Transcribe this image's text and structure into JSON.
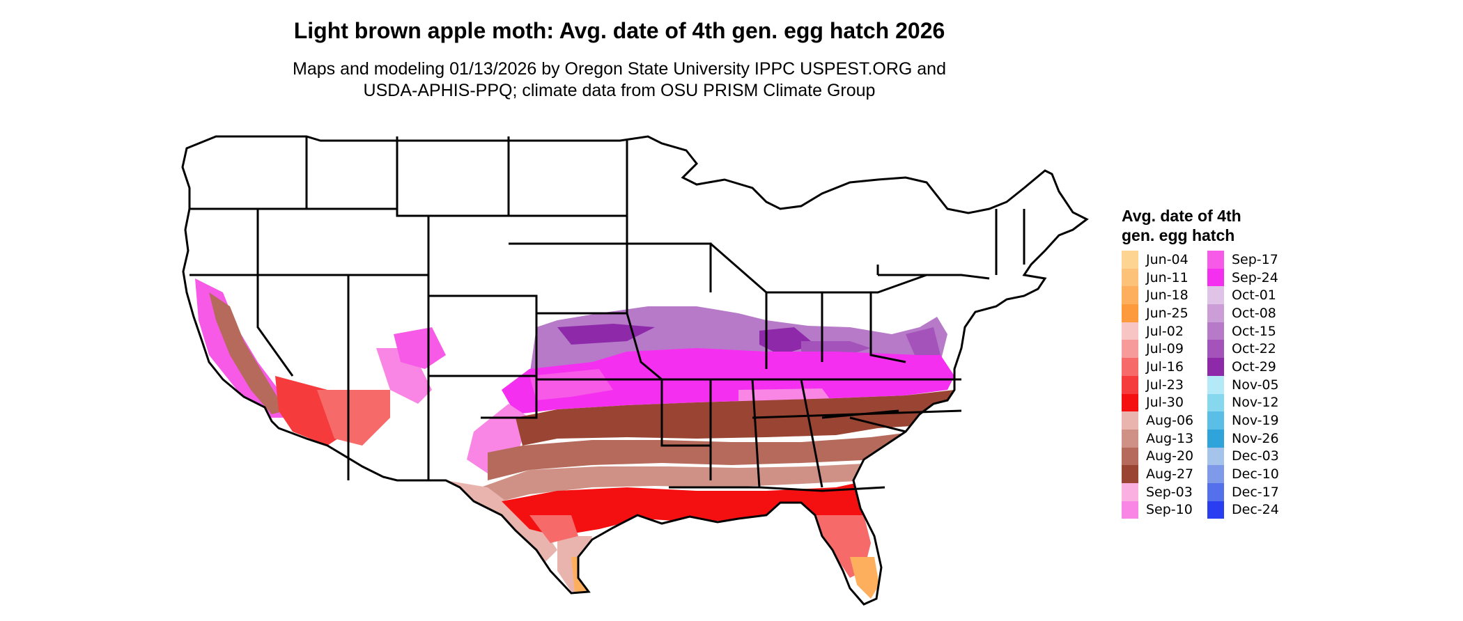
{
  "title": "Light brown apple moth: Avg. date of 4th gen. egg hatch 2026",
  "subtitle_line1": "Maps and modeling 01/13/2026 by Oregon State University IPPC USPEST.ORG and",
  "subtitle_line2": "USDA-APHIS-PPQ; climate data from OSU PRISM Climate Group",
  "legend": {
    "title": "Avg. date of 4th gen. egg hatch",
    "columns": [
      [
        {
          "label": "Jun-04",
          "color": "#fdd491"
        },
        {
          "label": "Jun-11",
          "color": "#fdc27a"
        },
        {
          "label": "Jun-18",
          "color": "#fdaf5e"
        },
        {
          "label": "Jun-25",
          "color": "#fd9a3e"
        },
        {
          "label": "Jul-02",
          "color": "#f8c5c5"
        },
        {
          "label": "Jul-09",
          "color": "#f79a9a"
        },
        {
          "label": "Jul-16",
          "color": "#f66a6a"
        },
        {
          "label": "Jul-23",
          "color": "#f53b3b"
        },
        {
          "label": "Jul-30",
          "color": "#f41010"
        },
        {
          "label": "Aug-06",
          "color": "#e8b4ad"
        },
        {
          "label": "Aug-13",
          "color": "#cf9185"
        },
        {
          "label": "Aug-20",
          "color": "#b56a5b"
        },
        {
          "label": "Aug-27",
          "color": "#9a4534"
        },
        {
          "label": "Sep-03",
          "color": "#fbb0e2"
        },
        {
          "label": "Sep-10",
          "color": "#f986e4"
        }
      ],
      [
        {
          "label": "Sep-17",
          "color": "#f65ae6"
        },
        {
          "label": "Sep-24",
          "color": "#f52ff0"
        },
        {
          "label": "Oct-01",
          "color": "#e0c4e8"
        },
        {
          "label": "Oct-08",
          "color": "#cc9ed8"
        },
        {
          "label": "Oct-15",
          "color": "#b77ac9"
        },
        {
          "label": "Oct-22",
          "color": "#a453ba"
        },
        {
          "label": "Oct-29",
          "color": "#8e2aa9"
        },
        {
          "label": "Nov-05",
          "color": "#b4eaf7"
        },
        {
          "label": "Nov-12",
          "color": "#87d7ef"
        },
        {
          "label": "Nov-19",
          "color": "#5bbee6"
        },
        {
          "label": "Nov-26",
          "color": "#2ea4da"
        },
        {
          "label": "Dec-03",
          "color": "#a6c3ec"
        },
        {
          "label": "Dec-10",
          "color": "#7e9ae8"
        },
        {
          "label": "Dec-17",
          "color": "#5470ea"
        },
        {
          "label": "Dec-24",
          "color": "#2a3ef1"
        }
      ]
    ]
  },
  "map_colors": {
    "state_outline": "#000000",
    "no_data": "#ffffff"
  }
}
